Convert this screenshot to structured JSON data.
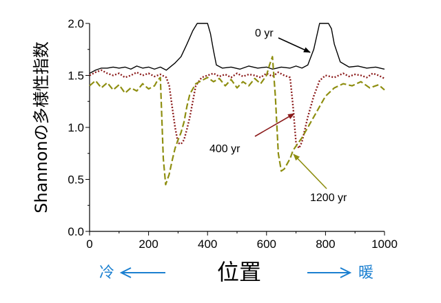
{
  "chart_data": {
    "type": "line",
    "xlabel": "位置",
    "ylabel": "Shannonの多様性指数",
    "xlim": [
      0,
      1000
    ],
    "ylim": [
      0.0,
      2.0
    ],
    "x_ticks": [
      "0",
      "200",
      "400",
      "600",
      "800",
      "1000"
    ],
    "y_ticks": [
      "0.0",
      "0.5",
      "1.0",
      "1.5",
      "2.0"
    ],
    "direction_labels": {
      "cold": "冷",
      "warm": "暖"
    },
    "colors": {
      "yr0": "#000000",
      "yr400": "#8b1a1a",
      "yr1200": "#8e8e10",
      "direction": "#1a7fd0"
    },
    "series": [
      {
        "name": "0 yr",
        "x": [
          0,
          20,
          40,
          60,
          80,
          100,
          120,
          140,
          160,
          180,
          200,
          220,
          240,
          260,
          290,
          310,
          330,
          350,
          365,
          380,
          400,
          410,
          420,
          430,
          450,
          480,
          510,
          540,
          570,
          600,
          620,
          650,
          680,
          700,
          720,
          740,
          760,
          780,
          800,
          810,
          820,
          830,
          850,
          880,
          910,
          940,
          970,
          1000
        ],
        "y": [
          1.52,
          1.55,
          1.57,
          1.57,
          1.58,
          1.57,
          1.58,
          1.56,
          1.59,
          1.57,
          1.58,
          1.56,
          1.58,
          1.55,
          1.62,
          1.68,
          1.8,
          1.93,
          2.0,
          2.0,
          2.0,
          1.9,
          1.74,
          1.6,
          1.57,
          1.58,
          1.56,
          1.59,
          1.57,
          1.58,
          1.56,
          1.58,
          1.57,
          1.59,
          1.57,
          1.6,
          1.75,
          2.0,
          2.0,
          2.0,
          1.95,
          1.8,
          1.63,
          1.58,
          1.59,
          1.57,
          1.58,
          1.56
        ]
      },
      {
        "name": "400 yr",
        "x": [
          0,
          20,
          40,
          60,
          80,
          100,
          120,
          140,
          160,
          180,
          200,
          220,
          240,
          260,
          270,
          280,
          290,
          300,
          310,
          320,
          330,
          340,
          350,
          360,
          380,
          400,
          420,
          440,
          460,
          480,
          500,
          520,
          540,
          560,
          580,
          600,
          620,
          640,
          660,
          680,
          690,
          700,
          710,
          720,
          740,
          760,
          780,
          800,
          830,
          860,
          880,
          900,
          920,
          940,
          960,
          980,
          1000
        ],
        "y": [
          1.5,
          1.53,
          1.55,
          1.52,
          1.5,
          1.52,
          1.48,
          1.5,
          1.53,
          1.5,
          1.52,
          1.49,
          1.51,
          1.48,
          1.4,
          1.2,
          1.0,
          0.85,
          0.84,
          0.88,
          0.98,
          1.1,
          1.25,
          1.4,
          1.48,
          1.5,
          1.52,
          1.49,
          1.51,
          1.48,
          1.52,
          1.49,
          1.51,
          1.5,
          1.48,
          1.52,
          1.49,
          1.53,
          1.5,
          1.48,
          1.2,
          0.85,
          0.8,
          0.86,
          1.1,
          1.3,
          1.45,
          1.5,
          1.48,
          1.52,
          1.49,
          1.51,
          1.5,
          1.48,
          1.52,
          1.5,
          1.47
        ]
      },
      {
        "name": "1200 yr",
        "x": [
          0,
          20,
          40,
          60,
          80,
          100,
          120,
          140,
          160,
          180,
          200,
          220,
          230,
          240,
          250,
          258,
          270,
          280,
          290,
          300,
          310,
          320,
          330,
          340,
          360,
          380,
          400,
          420,
          440,
          460,
          480,
          500,
          520,
          540,
          560,
          580,
          600,
          610,
          620,
          630,
          640,
          650,
          660,
          670,
          680,
          690,
          700,
          710,
          720,
          740,
          760,
          780,
          800,
          830,
          860,
          890,
          920,
          950,
          980,
          1000
        ],
        "y": [
          1.4,
          1.45,
          1.38,
          1.43,
          1.36,
          1.41,
          1.33,
          1.38,
          1.35,
          1.42,
          1.37,
          1.4,
          1.45,
          1.48,
          0.7,
          0.45,
          0.55,
          0.68,
          0.8,
          0.88,
          0.95,
          1.05,
          1.2,
          1.32,
          1.42,
          1.45,
          1.48,
          1.44,
          1.47,
          1.4,
          1.46,
          1.38,
          1.44,
          1.4,
          1.47,
          1.42,
          1.5,
          1.6,
          1.68,
          1.3,
          0.75,
          0.58,
          0.6,
          0.65,
          0.7,
          0.78,
          0.82,
          0.86,
          0.9,
          1.0,
          1.1,
          1.2,
          1.3,
          1.38,
          1.42,
          1.4,
          1.44,
          1.38,
          1.41,
          1.36
        ]
      }
    ],
    "annotations": [
      {
        "series": "0 yr",
        "text": "0 yr"
      },
      {
        "series": "400 yr",
        "text": "400 yr"
      },
      {
        "series": "1200 yr",
        "text": "1200 yr"
      }
    ]
  }
}
